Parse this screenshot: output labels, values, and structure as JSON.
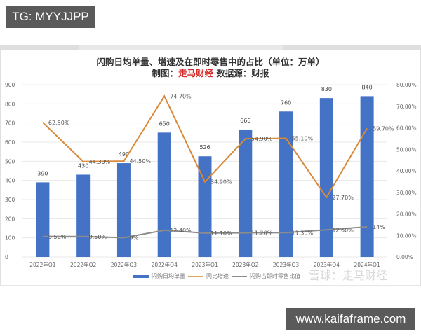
{
  "overlays": {
    "top_tag": "TG: MYYJJPP",
    "bottom_tag": "www.kaifaframe.com"
  },
  "title": "闪购日均单量、增速及在即时零售中的占比（单位：万单）",
  "subtitle": {
    "prefix": "制图：",
    "brand": "走马财经",
    "suffix": "  数据源：财报"
  },
  "watermark": "雪球：走马财经",
  "colors": {
    "bar": "#4472c4",
    "growth_line": "#d9893a",
    "share_line": "#8c8c8c",
    "brand_red": "#d42b2b",
    "tag_bg": "#5a5a5a"
  },
  "legend": [
    {
      "label": "闪购日均单量",
      "color": "#4472c4"
    },
    {
      "label": "同比增速",
      "color": "#e0a060"
    },
    {
      "label": "闪购占即时零售比值",
      "color": "#8c8c8c"
    }
  ],
  "axes": {
    "left_ticks": [
      "900",
      "800",
      "700",
      "600",
      "500",
      "400",
      "300",
      "200",
      "100",
      "0"
    ],
    "right_ticks": [
      "80.00%",
      "70.00%",
      "60.00%",
      "50.00%",
      "40.00%",
      "30.00%",
      "20.00%",
      "10.00%",
      "0.00%"
    ]
  },
  "chart_data": {
    "type": "bar",
    "title": "闪购日均单量、增速及在即时零售中的占比（单位：万单）",
    "subtitle": "制图：走马财经 数据源：财报",
    "categories": [
      "2022年Q1",
      "2022年Q2",
      "2022年Q3",
      "2022年Q4",
      "2023年Q1",
      "2023年Q2",
      "2023年Q3",
      "2023年Q4",
      "2024年Q1"
    ],
    "series": [
      {
        "name": "闪购日均单量",
        "type": "bar",
        "axis": "left",
        "values": [
          390,
          430,
          490,
          650,
          526,
          666,
          760,
          830,
          840
        ],
        "labels": [
          "390",
          "430",
          "490",
          "650",
          "526",
          "666",
          "760",
          "830",
          "840"
        ]
      },
      {
        "name": "同比增速",
        "type": "line",
        "axis": "right",
        "values": [
          62.5,
          44.3,
          44.5,
          74.7,
          34.9,
          54.9,
          55.1,
          27.7,
          59.7
        ],
        "labels": [
          "62.50%",
          "44.30%",
          "44.50%",
          "74.70%",
          "34.90%",
          "54.90%",
          "55.10%",
          "27.70%",
          "59.70%"
        ]
      },
      {
        "name": "闪购占即时零售比值",
        "type": "line",
        "axis": "right",
        "values": [
          9.5,
          9.5,
          9.0,
          12.4,
          11.1,
          11.2,
          11.3,
          12.6,
          14.0
        ],
        "labels": [
          "9.50%",
          "9.50%",
          "9%",
          "12.40%",
          "11.10%",
          "11.20%",
          "11.30%",
          "12.60%",
          "14%"
        ]
      }
    ],
    "ylim_left": [
      0,
      900
    ],
    "ylim_right": [
      0,
      80
    ],
    "xlabel": "",
    "ylabel_left": "",
    "ylabel_right": "",
    "grid": true,
    "legend_position": "bottom"
  }
}
